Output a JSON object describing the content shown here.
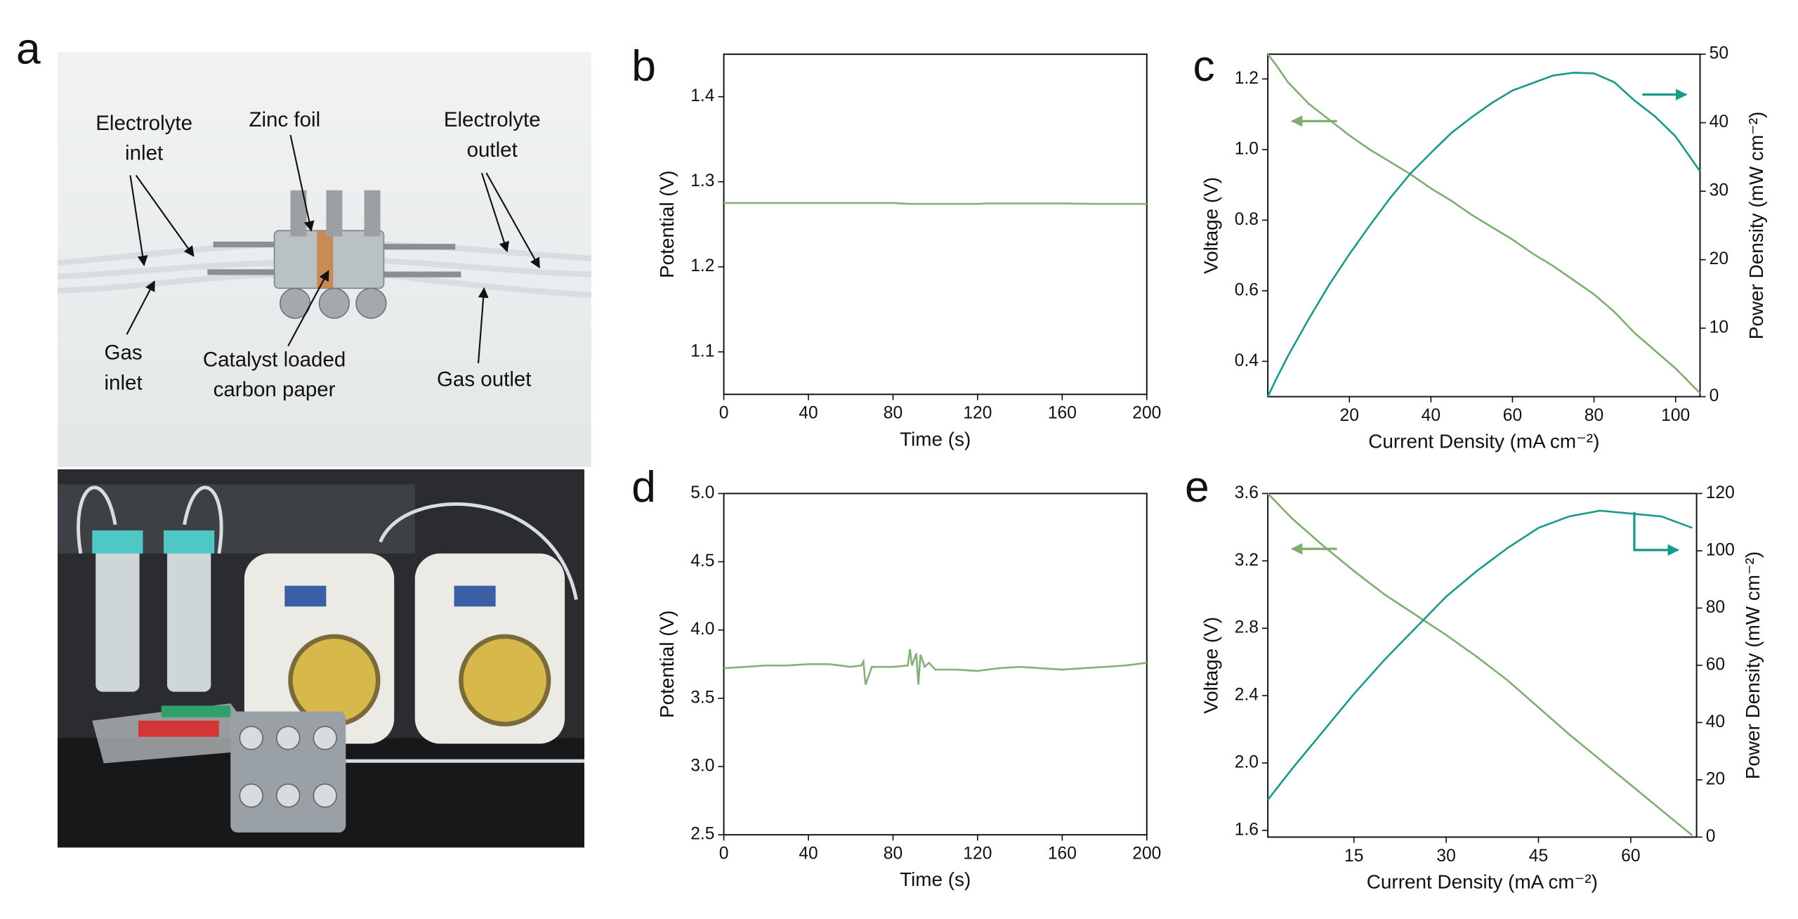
{
  "photo_panel": {
    "panel_label": "a",
    "annotations": [
      {
        "lines": [
          "Electrolyte",
          "inlet"
        ]
      },
      {
        "lines": [
          "Zinc foil"
        ]
      },
      {
        "lines": [
          "Electrolyte",
          "outlet"
        ]
      },
      {
        "lines": [
          "Gas",
          "inlet"
        ]
      },
      {
        "lines": [
          "Catalyst loaded",
          "carbon paper"
        ]
      },
      {
        "lines": [
          "Gas outlet"
        ]
      }
    ]
  },
  "chart_data": [
    {
      "type": "line",
      "panel_label": "b",
      "xlabel": "Time (s)",
      "ylabel": "Potential (V)",
      "xlim": [
        0,
        200
      ],
      "xticks": [
        0,
        40,
        80,
        120,
        160,
        200
      ],
      "ylim": [
        1.05,
        1.45
      ],
      "yticks": [
        1.1,
        1.2,
        1.3,
        1.4
      ],
      "x": [
        0,
        40,
        80,
        88,
        120,
        124,
        160,
        176,
        200
      ],
      "series": [
        {
          "color": "#86b07a",
          "values": [
            1.275,
            1.275,
            1.275,
            1.274,
            1.274,
            1.2745,
            1.2745,
            1.274,
            1.274
          ]
        }
      ]
    },
    {
      "type": "line",
      "panel_label": "c",
      "xlabel": "Current Density (mA cm⁻²)",
      "ylabel": "Voltage (V)",
      "y2label": "Power Density (mW cm⁻²)",
      "xlim": [
        0,
        106
      ],
      "xticks": [
        20,
        40,
        60,
        80,
        100
      ],
      "ylim": [
        0.3,
        1.27
      ],
      "yticks": [
        0.4,
        0.6,
        0.8,
        {
          "value": 1,
          "label": "1.0"
        },
        1.2
      ],
      "y2lim": [
        0,
        50
      ],
      "y2ticks": [
        0,
        10,
        20,
        30,
        40,
        50
      ],
      "x": [
        0,
        2,
        5,
        10,
        15,
        20,
        25,
        30,
        35,
        40,
        45,
        50,
        55,
        60,
        65,
        70,
        75,
        80,
        85,
        90,
        95,
        100,
        106
      ],
      "series": [
        {
          "color": "#7fae75",
          "values": [
            1.27,
            1.24,
            1.19,
            1.13,
            1.085,
            1.04,
            1.0,
            0.965,
            0.93,
            0.89,
            0.855,
            0.815,
            0.78,
            0.745,
            0.705,
            0.67,
            0.63,
            0.59,
            0.54,
            0.48,
            0.43,
            0.38,
            0.31
          ]
        },
        {
          "color": "#1a9a8a",
          "axis": "y2",
          "values": [
            0,
            2.5,
            6.0,
            11.3,
            16.3,
            20.8,
            25.0,
            29.0,
            32.6,
            35.6,
            38.5,
            40.8,
            42.9,
            44.7,
            45.8,
            46.9,
            47.3,
            47.2,
            45.9,
            43.2,
            40.9,
            38.0,
            32.9
          ]
        }
      ]
    },
    {
      "type": "line",
      "panel_label": "d",
      "xlabel": "Time (s)",
      "ylabel": "Potential (V)",
      "xlim": [
        0,
        200
      ],
      "xticks": [
        0,
        40,
        80,
        120,
        160,
        200
      ],
      "ylim": [
        2.5,
        5
      ],
      "yticks": [
        2.5,
        {
          "value": 3,
          "label": "3.0"
        },
        3.5,
        {
          "value": 4,
          "label": "4.0"
        },
        4.5,
        {
          "value": 5,
          "label": "5.0"
        }
      ],
      "x": [
        0,
        10,
        20,
        30,
        40,
        50,
        60,
        65,
        66,
        67,
        70,
        80,
        87,
        88,
        89,
        91,
        92,
        93,
        95,
        97,
        100,
        110,
        120,
        130,
        140,
        150,
        160,
        170,
        180,
        190,
        200
      ],
      "series": [
        {
          "color": "#86b07a",
          "values": [
            3.72,
            3.73,
            3.74,
            3.74,
            3.75,
            3.75,
            3.73,
            3.74,
            3.77,
            3.6,
            3.73,
            3.73,
            3.74,
            3.86,
            3.74,
            3.83,
            3.6,
            3.82,
            3.73,
            3.76,
            3.71,
            3.71,
            3.7,
            3.72,
            3.73,
            3.72,
            3.71,
            3.72,
            3.73,
            3.74,
            3.76
          ]
        }
      ]
    },
    {
      "type": "line",
      "panel_label": "e",
      "xlabel": "Current Density (mA cm⁻²)",
      "ylabel": "Voltage (V)",
      "y2label": "Power Density (mW cm⁻²)",
      "xlim": [
        1,
        70.7
      ],
      "xticks": [
        15,
        30,
        45,
        60
      ],
      "ylim": [
        1.56,
        3.6
      ],
      "yticks": [
        1.6,
        {
          "value": 2,
          "label": "2.0"
        },
        2.4,
        2.8,
        3.2,
        3.6
      ],
      "y2lim": [
        0,
        120
      ],
      "y2ticks": [
        0,
        20,
        40,
        60,
        80,
        100,
        120
      ],
      "x": [
        1,
        5,
        10,
        15,
        20,
        25,
        30,
        35,
        40,
        45,
        50,
        55,
        60,
        65,
        70
      ],
      "series": [
        {
          "color": "#7fae75",
          "values": [
            3.6,
            3.45,
            3.29,
            3.14,
            3.0,
            2.88,
            2.76,
            2.63,
            2.49,
            2.33,
            2.17,
            2.02,
            1.87,
            1.72,
            1.57
          ]
        },
        {
          "color": "#1a9a8a",
          "axis": "y2",
          "values": [
            13,
            24,
            37,
            50,
            62,
            73,
            84,
            93,
            101,
            108,
            112,
            114,
            113,
            112,
            108
          ]
        }
      ]
    }
  ]
}
